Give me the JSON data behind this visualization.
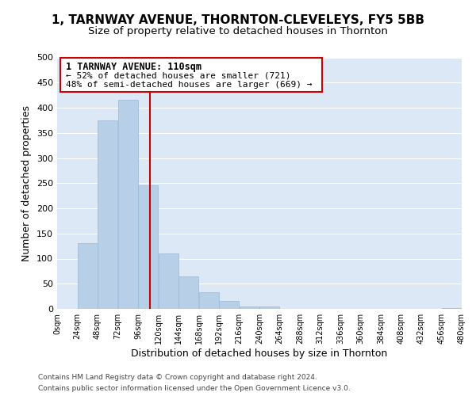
{
  "title": "1, TARNWAY AVENUE, THORNTON-CLEVELEYS, FY5 5BB",
  "subtitle": "Size of property relative to detached houses in Thornton",
  "xlabel": "Distribution of detached houses by size in Thornton",
  "ylabel": "Number of detached properties",
  "bar_color": "#b8cfe8",
  "bar_edge_color": "#9ab8d8",
  "bins_left": [
    0,
    24,
    48,
    72,
    96,
    120,
    144,
    168,
    192,
    216,
    240,
    264,
    288,
    312,
    336,
    360,
    384,
    408,
    432,
    456
  ],
  "bin_width": 24,
  "bar_heights": [
    0,
    130,
    375,
    415,
    245,
    110,
    65,
    33,
    15,
    5,
    5,
    0,
    0,
    0,
    0,
    0,
    0,
    0,
    0,
    2
  ],
  "xlim": [
    0,
    480
  ],
  "ylim": [
    0,
    500
  ],
  "yticks": [
    0,
    50,
    100,
    150,
    200,
    250,
    300,
    350,
    400,
    450,
    500
  ],
  "xtick_labels": [
    "0sqm",
    "24sqm",
    "48sqm",
    "72sqm",
    "96sqm",
    "120sqm",
    "144sqm",
    "168sqm",
    "192sqm",
    "216sqm",
    "240sqm",
    "264sqm",
    "288sqm",
    "312sqm",
    "336sqm",
    "360sqm",
    "384sqm",
    "408sqm",
    "432sqm",
    "456sqm",
    "480sqm"
  ],
  "vline_x": 110,
  "vline_color": "#cc0000",
  "annotation_title": "1 TARNWAY AVENUE: 110sqm",
  "annotation_line1": "← 52% of detached houses are smaller (721)",
  "annotation_line2": "48% of semi-detached houses are larger (669) →",
  "annotation_box_color": "#ffffff",
  "annotation_box_edge": "#cc0000",
  "footer_line1": "Contains HM Land Registry data © Crown copyright and database right 2024.",
  "footer_line2": "Contains public sector information licensed under the Open Government Licence v3.0.",
  "grid_color": "#ffffff",
  "bg_color": "#dce8f5",
  "fig_bg_color": "#ffffff",
  "title_fontsize": 11,
  "subtitle_fontsize": 9.5
}
